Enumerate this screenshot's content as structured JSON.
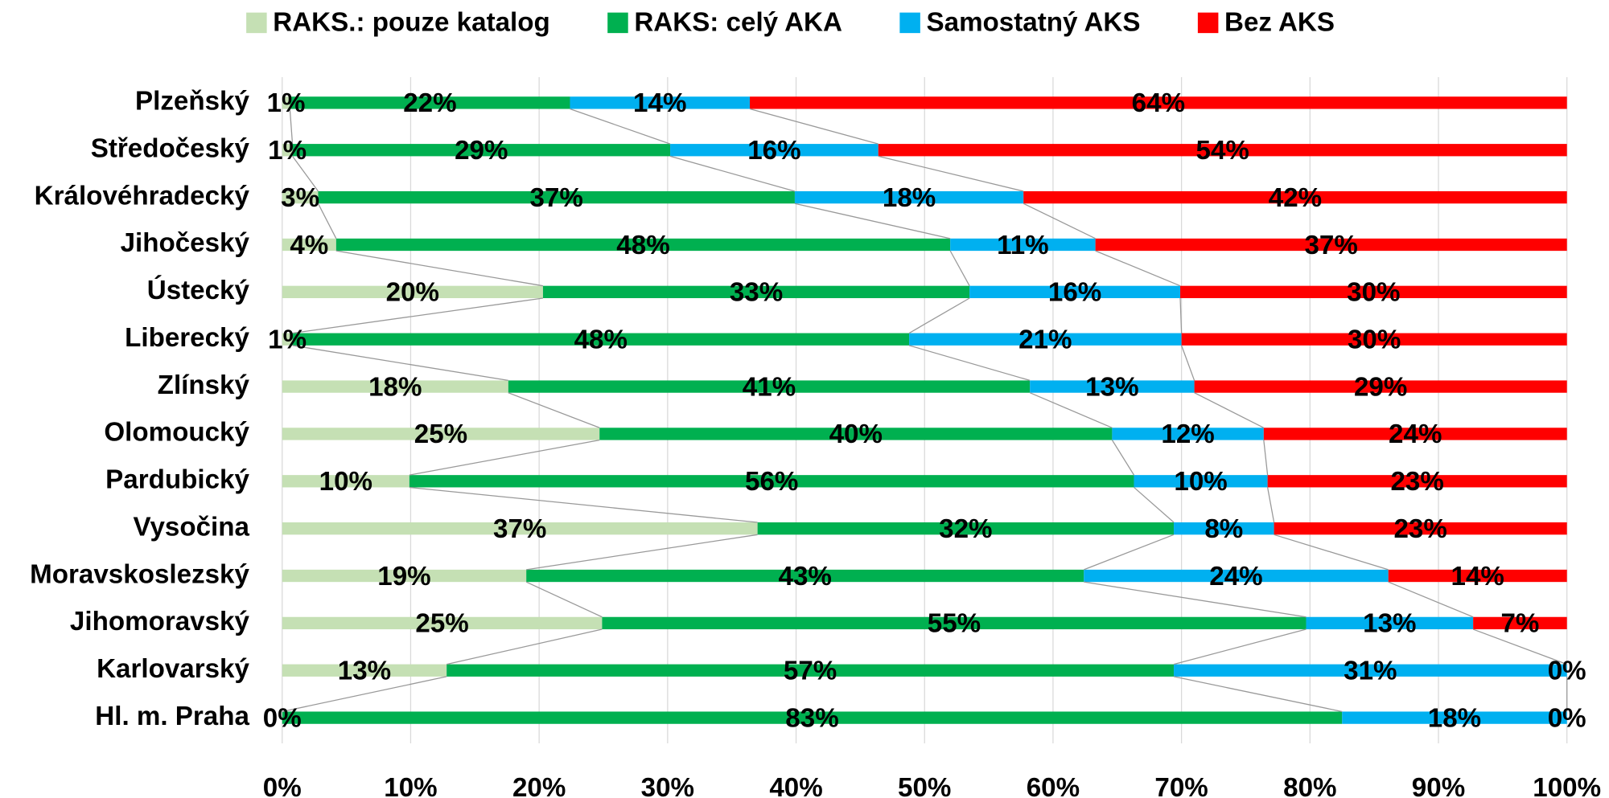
{
  "chart_data": {
    "type": "stacked_barh",
    "categories": [
      "Plzeňský",
      "Středočeský",
      "Královéhradecký",
      "Jihočeský",
      "Ústecký",
      "Liberecký",
      "Zlínský",
      "Olomoucký",
      "Pardubický",
      "Vysočina",
      "Moravskoslezský",
      "Jihomoravský",
      "Karlovarský",
      "Hl. m. Praha"
    ],
    "series": [
      {
        "name": "RAKS.: pouze katalog",
        "color": "#c5e0b4",
        "values": [
          0.6,
          0.8,
          2.8,
          4.2,
          20.3,
          0.8,
          17.6,
          24.7,
          9.9,
          37.0,
          19.0,
          24.9,
          12.8,
          0
        ],
        "value_labels": [
          "1%",
          "1%",
          "3%",
          "4%",
          "20%",
          "1%",
          "18%",
          "25%",
          "10%",
          "37%",
          "19%",
          "25%",
          "13%",
          "0%"
        ]
      },
      {
        "name": "RAKS: celý AKA",
        "color": "#00b050",
        "values": [
          21.8,
          29.4,
          37.1,
          47.8,
          33.2,
          48.0,
          40.6,
          39.9,
          56.4,
          32.4,
          43.4,
          54.8,
          56.6,
          82.5
        ],
        "value_labels": [
          "22%",
          "29%",
          "37%",
          "48%",
          "33%",
          "48%",
          "41%",
          "40%",
          "56%",
          "32%",
          "43%",
          "55%",
          "57%",
          "83%"
        ]
      },
      {
        "name": "Samostatný AKS",
        "color": "#00b0f0",
        "values": [
          14.0,
          16.2,
          17.8,
          11.3,
          16.4,
          21.2,
          12.8,
          11.8,
          10.4,
          7.8,
          23.7,
          13.0,
          30.6,
          17.5
        ],
        "value_labels": [
          "14%",
          "16%",
          "18%",
          "11%",
          "16%",
          "21%",
          "13%",
          "12%",
          "10%",
          "8%",
          "24%",
          "13%",
          "31%",
          "18%"
        ]
      },
      {
        "name": "Bez AKS",
        "color": "#ff0000",
        "values": [
          63.6,
          53.6,
          42.3,
          36.7,
          30.1,
          30.0,
          29.0,
          23.6,
          23.3,
          22.8,
          13.9,
          7.3,
          0,
          0
        ],
        "value_labels": [
          "64%",
          "54%",
          "42%",
          "37%",
          "30%",
          "30%",
          "29%",
          "24%",
          "23%",
          "23%",
          "14%",
          "7%",
          "0%",
          "0%"
        ]
      }
    ],
    "xlim": [
      0,
      100
    ],
    "xticks": [
      {
        "value": 0,
        "label": "0%"
      },
      {
        "value": 10,
        "label": "10%"
      },
      {
        "value": 20,
        "label": "20%"
      },
      {
        "value": 30,
        "label": "30%"
      },
      {
        "value": 40,
        "label": "40%"
      },
      {
        "value": 50,
        "label": "50%"
      },
      {
        "value": 60,
        "label": "60%"
      },
      {
        "value": 70,
        "label": "70%"
      },
      {
        "value": 80,
        "label": "80%"
      },
      {
        "value": 90,
        "label": "90%"
      },
      {
        "value": 100,
        "label": "100%"
      }
    ],
    "grid": true,
    "legend": "top"
  }
}
